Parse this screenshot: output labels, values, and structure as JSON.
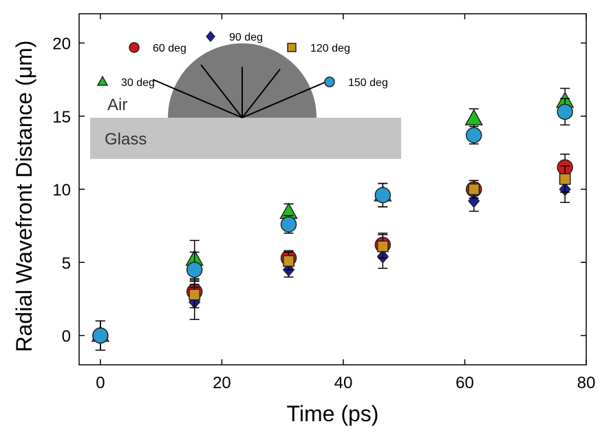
{
  "chart_data": {
    "type": "scatter",
    "xlabel": "Time (ps)",
    "ylabel": "Radial Wavefront Distance (μm)",
    "xlim": [
      -3.5,
      80
    ],
    "ylim": [
      -2,
      22
    ],
    "xticks": [
      "0",
      "20",
      "40",
      "60",
      "80"
    ],
    "yticks": [
      "0",
      "5",
      "10",
      "15",
      "20"
    ],
    "grid": false,
    "legend_position": "top-left (inset)",
    "series": [
      {
        "name": "30 deg",
        "marker": "triangle",
        "color": "#22bb22",
        "x": [
          0,
          15.5,
          31,
          46.5,
          61.5,
          76.5
        ],
        "y": [
          0,
          5.2,
          8.4,
          9.6,
          14.8,
          16.0
        ],
        "err": [
          1.0,
          1.3,
          0.6,
          0.8,
          0.7,
          0.9
        ]
      },
      {
        "name": "60 deg",
        "marker": "circle",
        "color": "#cc1a1a",
        "x": [
          0,
          15.5,
          31,
          46.5,
          61.5,
          76.5
        ],
        "y": [
          0,
          3.0,
          5.3,
          6.2,
          10.0,
          11.5
        ],
        "err": [
          1.0,
          0.8,
          0.5,
          0.8,
          0.6,
          0.9
        ]
      },
      {
        "name": "90 deg",
        "marker": "diamond",
        "color": "#1c1ca6",
        "x": [
          0,
          15.5,
          31,
          46.5,
          61.5,
          76.5
        ],
        "y": [
          0,
          2.3,
          4.5,
          5.4,
          9.2,
          10.0
        ],
        "err": [
          1.0,
          1.2,
          0.5,
          0.8,
          0.7,
          0.9
        ]
      },
      {
        "name": "120 deg",
        "marker": "square",
        "color": "#c99220",
        "x": [
          0,
          15.5,
          31,
          46.5,
          61.5,
          76.5
        ],
        "y": [
          0,
          2.8,
          5.1,
          6.1,
          10.0,
          10.7
        ],
        "err": [
          1.0,
          0.9,
          0.6,
          0.8,
          0.6,
          0.9
        ]
      },
      {
        "name": "150 deg",
        "marker": "circle",
        "color": "#2a9bd0",
        "x": [
          0,
          15.5,
          31,
          46.5,
          61.5,
          76.5
        ],
        "y": [
          0,
          4.5,
          7.6,
          9.6,
          13.7,
          15.3
        ],
        "err": [
          1.0,
          1.2,
          0.6,
          0.8,
          0.6,
          0.9
        ]
      }
    ],
    "inset": {
      "air_label": "Air",
      "glass_label": "Glass",
      "ray_angles_deg": [
        30,
        60,
        90,
        120,
        150
      ]
    }
  }
}
